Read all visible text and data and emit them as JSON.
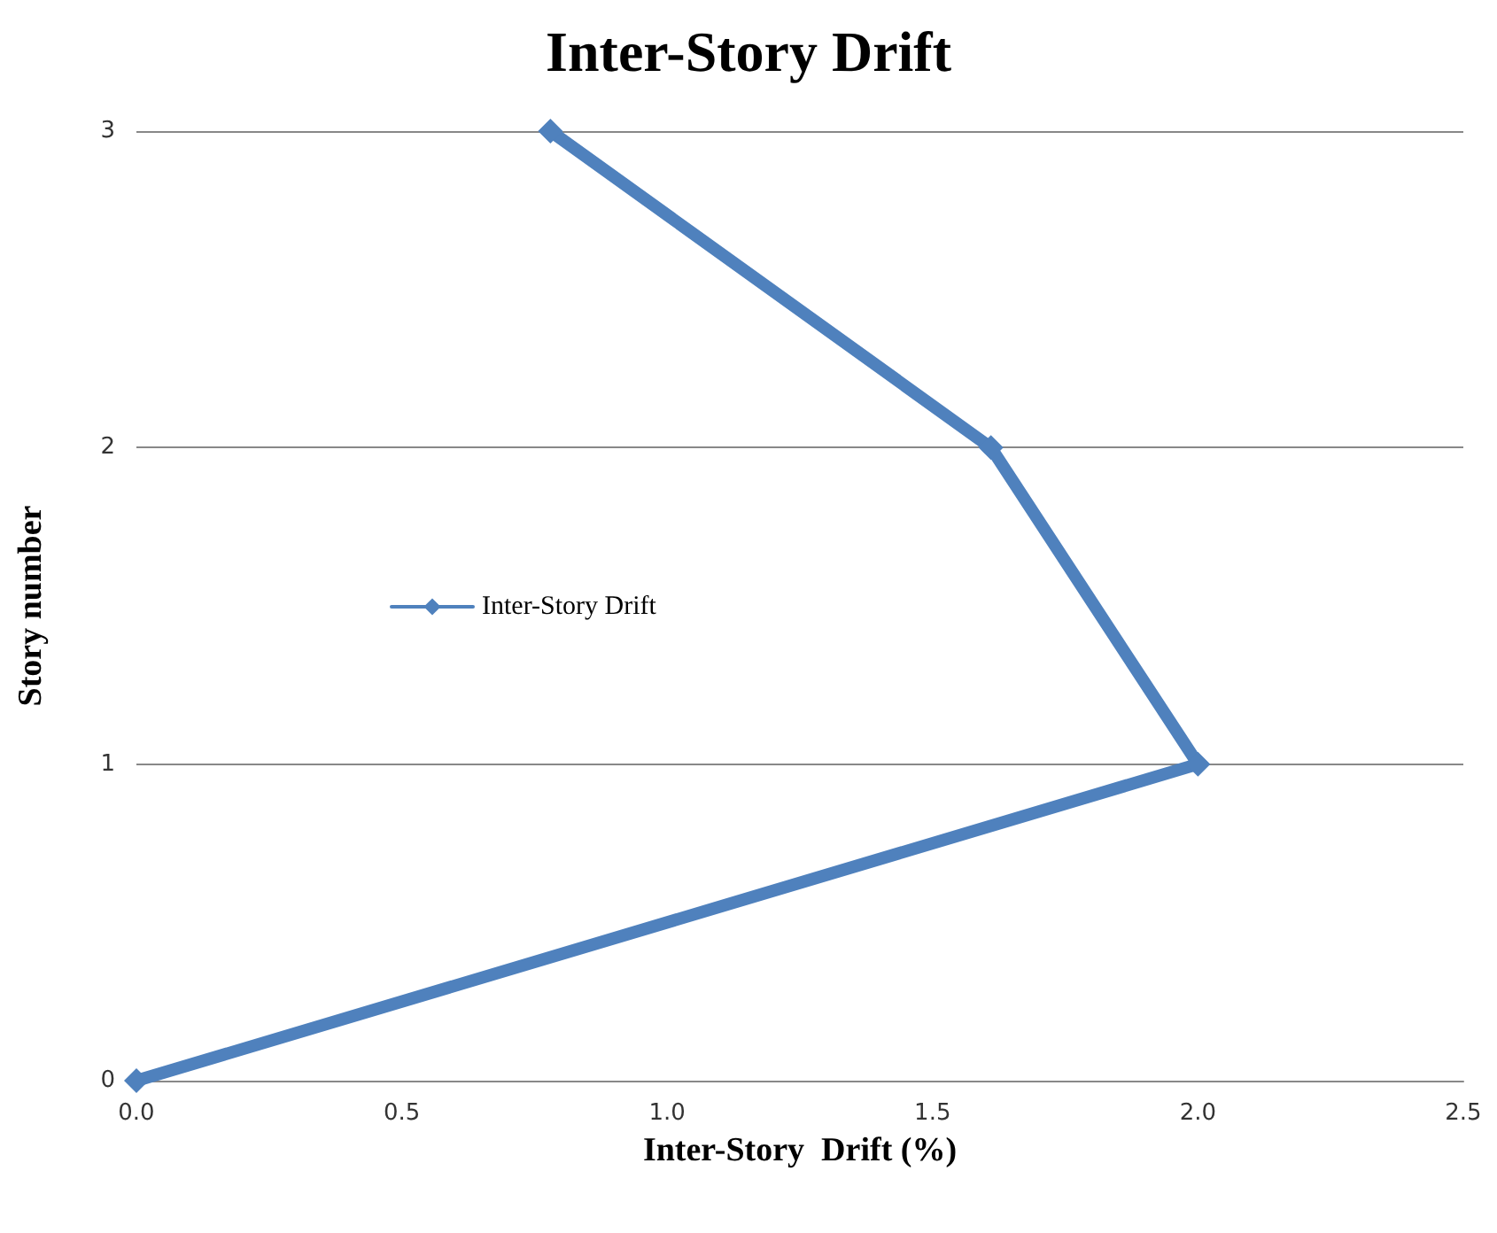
{
  "chart_data": {
    "type": "line",
    "title": "Inter-Story Drift",
    "xlabel": "Inter-Story  Drift (%)",
    "ylabel": "Story number",
    "x": [
      0,
      2.0,
      1.61,
      0.78
    ],
    "series": [
      {
        "name": "Inter-Story Drift",
        "color": "#4f81bd",
        "values": [
          0,
          1,
          2,
          3
        ]
      }
    ],
    "xlim": [
      0,
      2.5
    ],
    "xticks": [
      {
        "value": 0,
        "label": "0.0"
      },
      {
        "value": 0.5,
        "label": "0.5"
      },
      {
        "value": 1,
        "label": "1.0"
      },
      {
        "value": 1.5,
        "label": "1.5"
      },
      {
        "value": 2,
        "label": "2.0"
      },
      {
        "value": 2.5,
        "label": "2.5"
      }
    ],
    "ylim": [
      0,
      3
    ],
    "yticks": [
      0,
      1,
      2,
      3
    ],
    "grid": "y",
    "legend": "left",
    "marker": "diamond",
    "line_style": "solid"
  }
}
